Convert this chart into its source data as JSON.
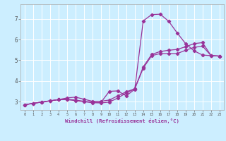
{
  "title": "",
  "xlabel": "Windchill (Refroidissement éolien,°C)",
  "background_color": "#cceeff",
  "grid_color": "#ffffff",
  "line_color": "#993399",
  "marker": "D",
  "markersize": 2.2,
  "linewidth": 0.9,
  "xlim_min": -0.5,
  "xlim_max": 23.5,
  "ylim_min": 2.6,
  "ylim_max": 7.7,
  "yticks": [
    3,
    4,
    5,
    6,
    7
  ],
  "xticks": [
    0,
    1,
    2,
    3,
    4,
    5,
    6,
    7,
    8,
    9,
    10,
    11,
    12,
    13,
    14,
    15,
    16,
    17,
    18,
    19,
    20,
    21,
    22,
    23
  ],
  "series": [
    [
      2.85,
      2.92,
      2.98,
      3.04,
      3.1,
      3.12,
      3.08,
      3.02,
      2.97,
      2.96,
      3.5,
      3.52,
      3.28,
      3.6,
      6.9,
      7.2,
      7.22,
      6.88,
      6.32,
      5.8,
      5.45,
      5.25,
      5.22,
      5.2
    ],
    [
      2.85,
      2.92,
      2.98,
      3.04,
      3.1,
      3.18,
      3.22,
      3.12,
      3.02,
      3.02,
      3.08,
      3.28,
      3.48,
      3.62,
      4.68,
      5.28,
      5.42,
      5.48,
      5.52,
      5.65,
      5.8,
      5.85,
      5.22,
      5.2
    ],
    [
      2.85,
      2.92,
      2.98,
      3.04,
      3.1,
      3.1,
      3.05,
      3.0,
      2.95,
      2.94,
      2.98,
      3.18,
      3.42,
      3.62,
      4.62,
      5.22,
      5.32,
      5.32,
      5.32,
      5.48,
      5.62,
      5.68,
      5.22,
      5.2
    ]
  ]
}
